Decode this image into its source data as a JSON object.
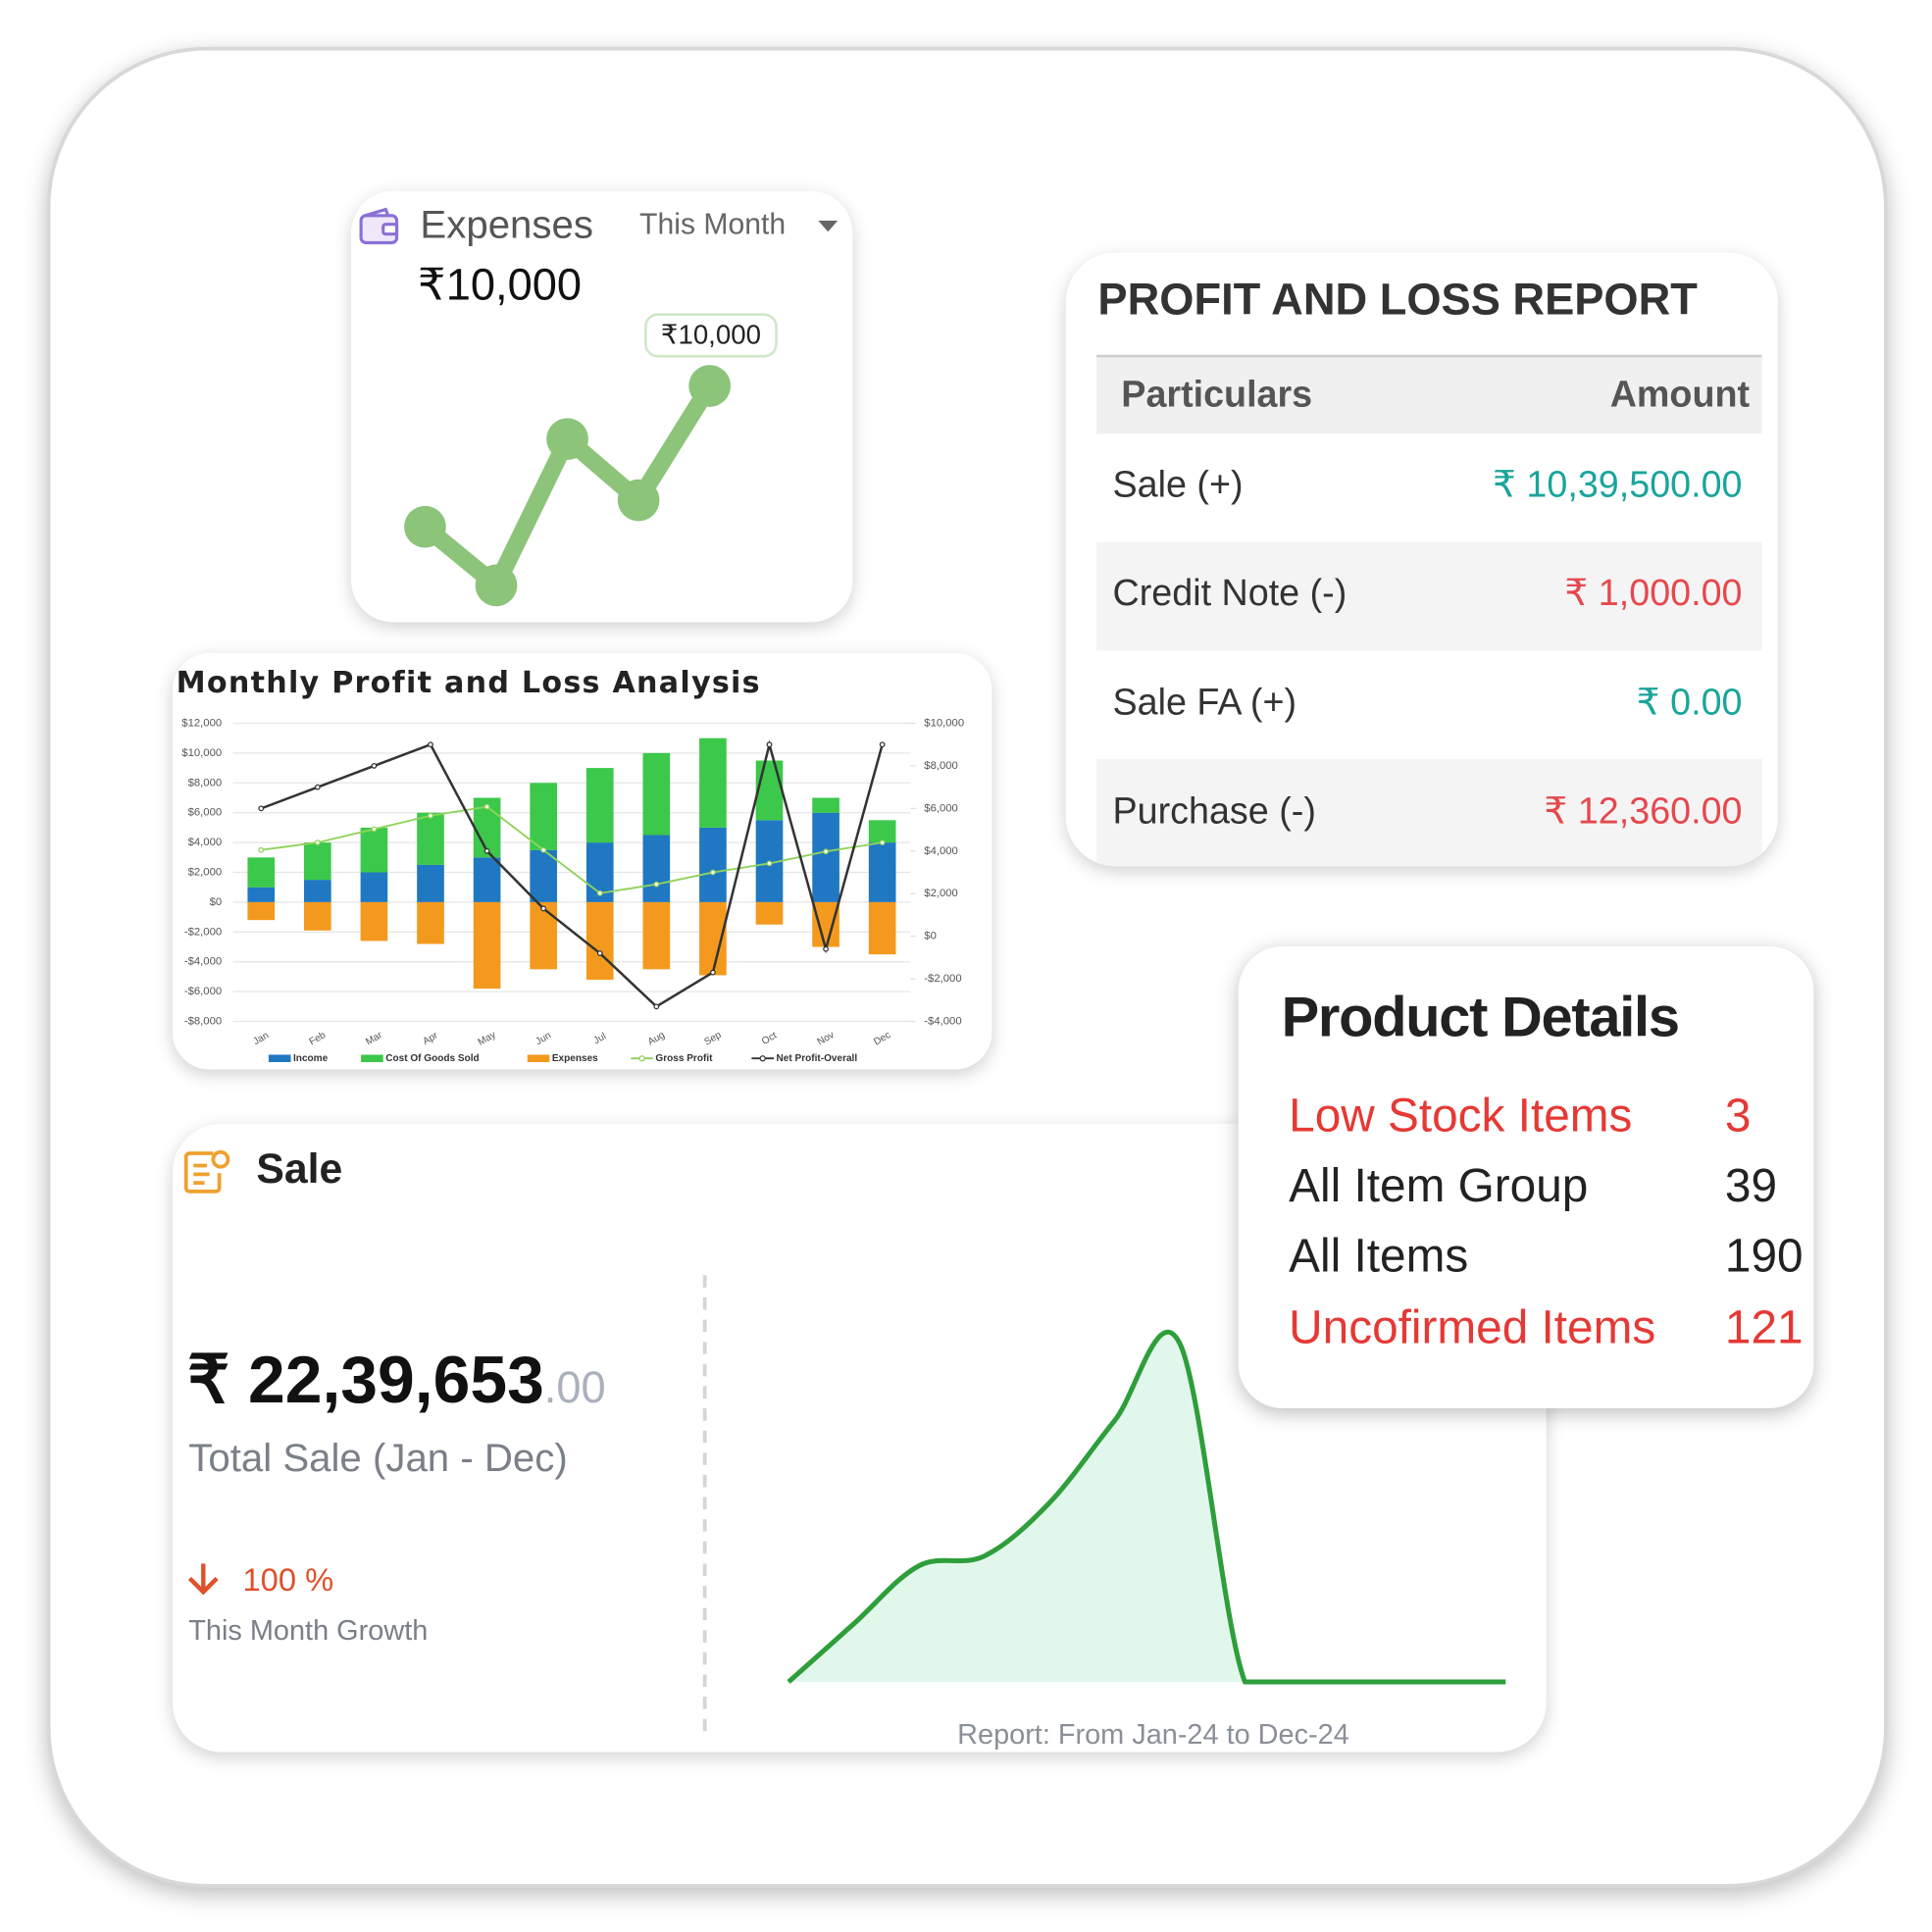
{
  "expenses_card": {
    "title": "Expenses",
    "period": "This Month",
    "amount": "₹10,000"
  },
  "profit_loss_report": {
    "title": "PROFIT AND LOSS REPORT",
    "columns": [
      "Particulars",
      "Amount"
    ],
    "rows": [
      {
        "particular": "Sale (+)",
        "amount": "₹ 10,39,500.00",
        "color": "#1aa59a"
      },
      {
        "particular": "Credit Note (-)",
        "amount": "₹ 1,000.00",
        "color": "#e5484d"
      },
      {
        "particular": "Sale FA (+)",
        "amount": "₹ 0.00",
        "color": "#1aa59a"
      },
      {
        "particular": "Purchase (-)",
        "amount": "₹ 12,360.00",
        "color": "#e5484d"
      }
    ]
  },
  "product_details": {
    "title": "Product Details",
    "items": [
      {
        "label": "Low Stock Items",
        "value": "3",
        "color": "#e53935"
      },
      {
        "label": "All Item Group",
        "value": "39",
        "color": "#222222"
      },
      {
        "label": "All Items",
        "value": "190",
        "color": "#222222"
      },
      {
        "label": "Uncofirmed Items",
        "value": "121",
        "color": "#e53935"
      }
    ]
  },
  "sale_card": {
    "title": "Sale",
    "amount": "₹ 22,39,653",
    "amount_decimals": ".00",
    "caption": "Total Sale (Jan - Dec)",
    "growth": "100 %",
    "growth_caption": "This Month Growth"
  },
  "chart_data": [
    {
      "type": "line",
      "values": [
        4700,
        2500,
        8000,
        5700,
        10000
      ],
      "ylim": [
        0,
        12000
      ],
      "color": "#8cc47a",
      "annotation": "₹10,000"
    },
    {
      "type": "combo",
      "title": "Monthly Profit and Loss Analysis",
      "categories": [
        "Jan",
        "Feb",
        "Mar",
        "Apr",
        "May",
        "Jun",
        "Jul",
        "Aug",
        "Sep",
        "Oct",
        "Nov",
        "Dec"
      ],
      "series": [
        {
          "name": "Income",
          "color": "#1f78c1",
          "kind": "bar",
          "values": [
            1000,
            1500,
            2000,
            2500,
            3000,
            3500,
            4000,
            4500,
            5000,
            5500,
            6000,
            4000
          ]
        },
        {
          "name": "Cost Of Goods Sold",
          "color": "#3cc84a",
          "kind": "bar",
          "values": [
            2000,
            2500,
            3000,
            3500,
            4000,
            4500,
            5000,
            5500,
            6000,
            4000,
            1000,
            1500
          ]
        },
        {
          "name": "Expenses",
          "color": "#f39a1e",
          "kind": "bar",
          "values": [
            -1200,
            -1900,
            -2600,
            -2800,
            -5800,
            -4500,
            -5200,
            -4500,
            -4900,
            -1500,
            -3000,
            -3500
          ]
        },
        {
          "name": "Gross Profit",
          "color": "#8fd35c",
          "kind": "line",
          "values": [
            3500,
            4000,
            4900,
            5800,
            6400,
            3500,
            600,
            1200,
            2000,
            2600,
            3400,
            4000
          ]
        },
        {
          "name": "Net Profit-Overall",
          "color": "#333333",
          "kind": "line",
          "axis": "y2",
          "values": [
            6000,
            7000,
            8000,
            9000,
            4000,
            1300,
            -800,
            -3300,
            -1700,
            9000,
            -600,
            9000
          ]
        }
      ],
      "ylim": [
        -8000,
        12000
      ],
      "yticks": [
        {
          "value": -8000,
          "label": "-$8,000"
        },
        {
          "value": -6000,
          "label": "-$6,000"
        },
        {
          "value": -4000,
          "label": "-$4,000"
        },
        {
          "value": -2000,
          "label": "-$2,000"
        },
        {
          "value": 0,
          "label": "$0"
        },
        {
          "value": 2000,
          "label": "$2,000"
        },
        {
          "value": 4000,
          "label": "$4,000"
        },
        {
          "value": 6000,
          "label": "$6,000"
        },
        {
          "value": 8000,
          "label": "$8,000"
        },
        {
          "value": 10000,
          "label": "$10,000"
        },
        {
          "value": 12000,
          "label": "$12,000"
        }
      ],
      "y2lim": [
        -4000,
        10000
      ],
      "y2ticks": [
        {
          "value": -4000,
          "label": "-$4,000"
        },
        {
          "value": -2000,
          "label": "-$2,000"
        },
        {
          "value": 0,
          "label": "$0"
        },
        {
          "value": 2000,
          "label": "$2,000"
        },
        {
          "value": 4000,
          "label": "$4,000"
        },
        {
          "value": 6000,
          "label": "$6,000"
        },
        {
          "value": 8000,
          "label": "$8,000"
        },
        {
          "value": 10000,
          "label": "$10,000"
        }
      ],
      "grid": true,
      "legend": "bottom"
    },
    {
      "type": "area",
      "values": [
        0,
        120000,
        240000,
        260000,
        370000,
        540000,
        700000,
        0,
        0,
        0,
        0,
        0
      ],
      "ylim": [
        0,
        800000
      ],
      "color": "#2e9e3a",
      "fill": "#e2f7ec",
      "subtitle": "Report: From Jan-24 to Dec-24"
    }
  ]
}
